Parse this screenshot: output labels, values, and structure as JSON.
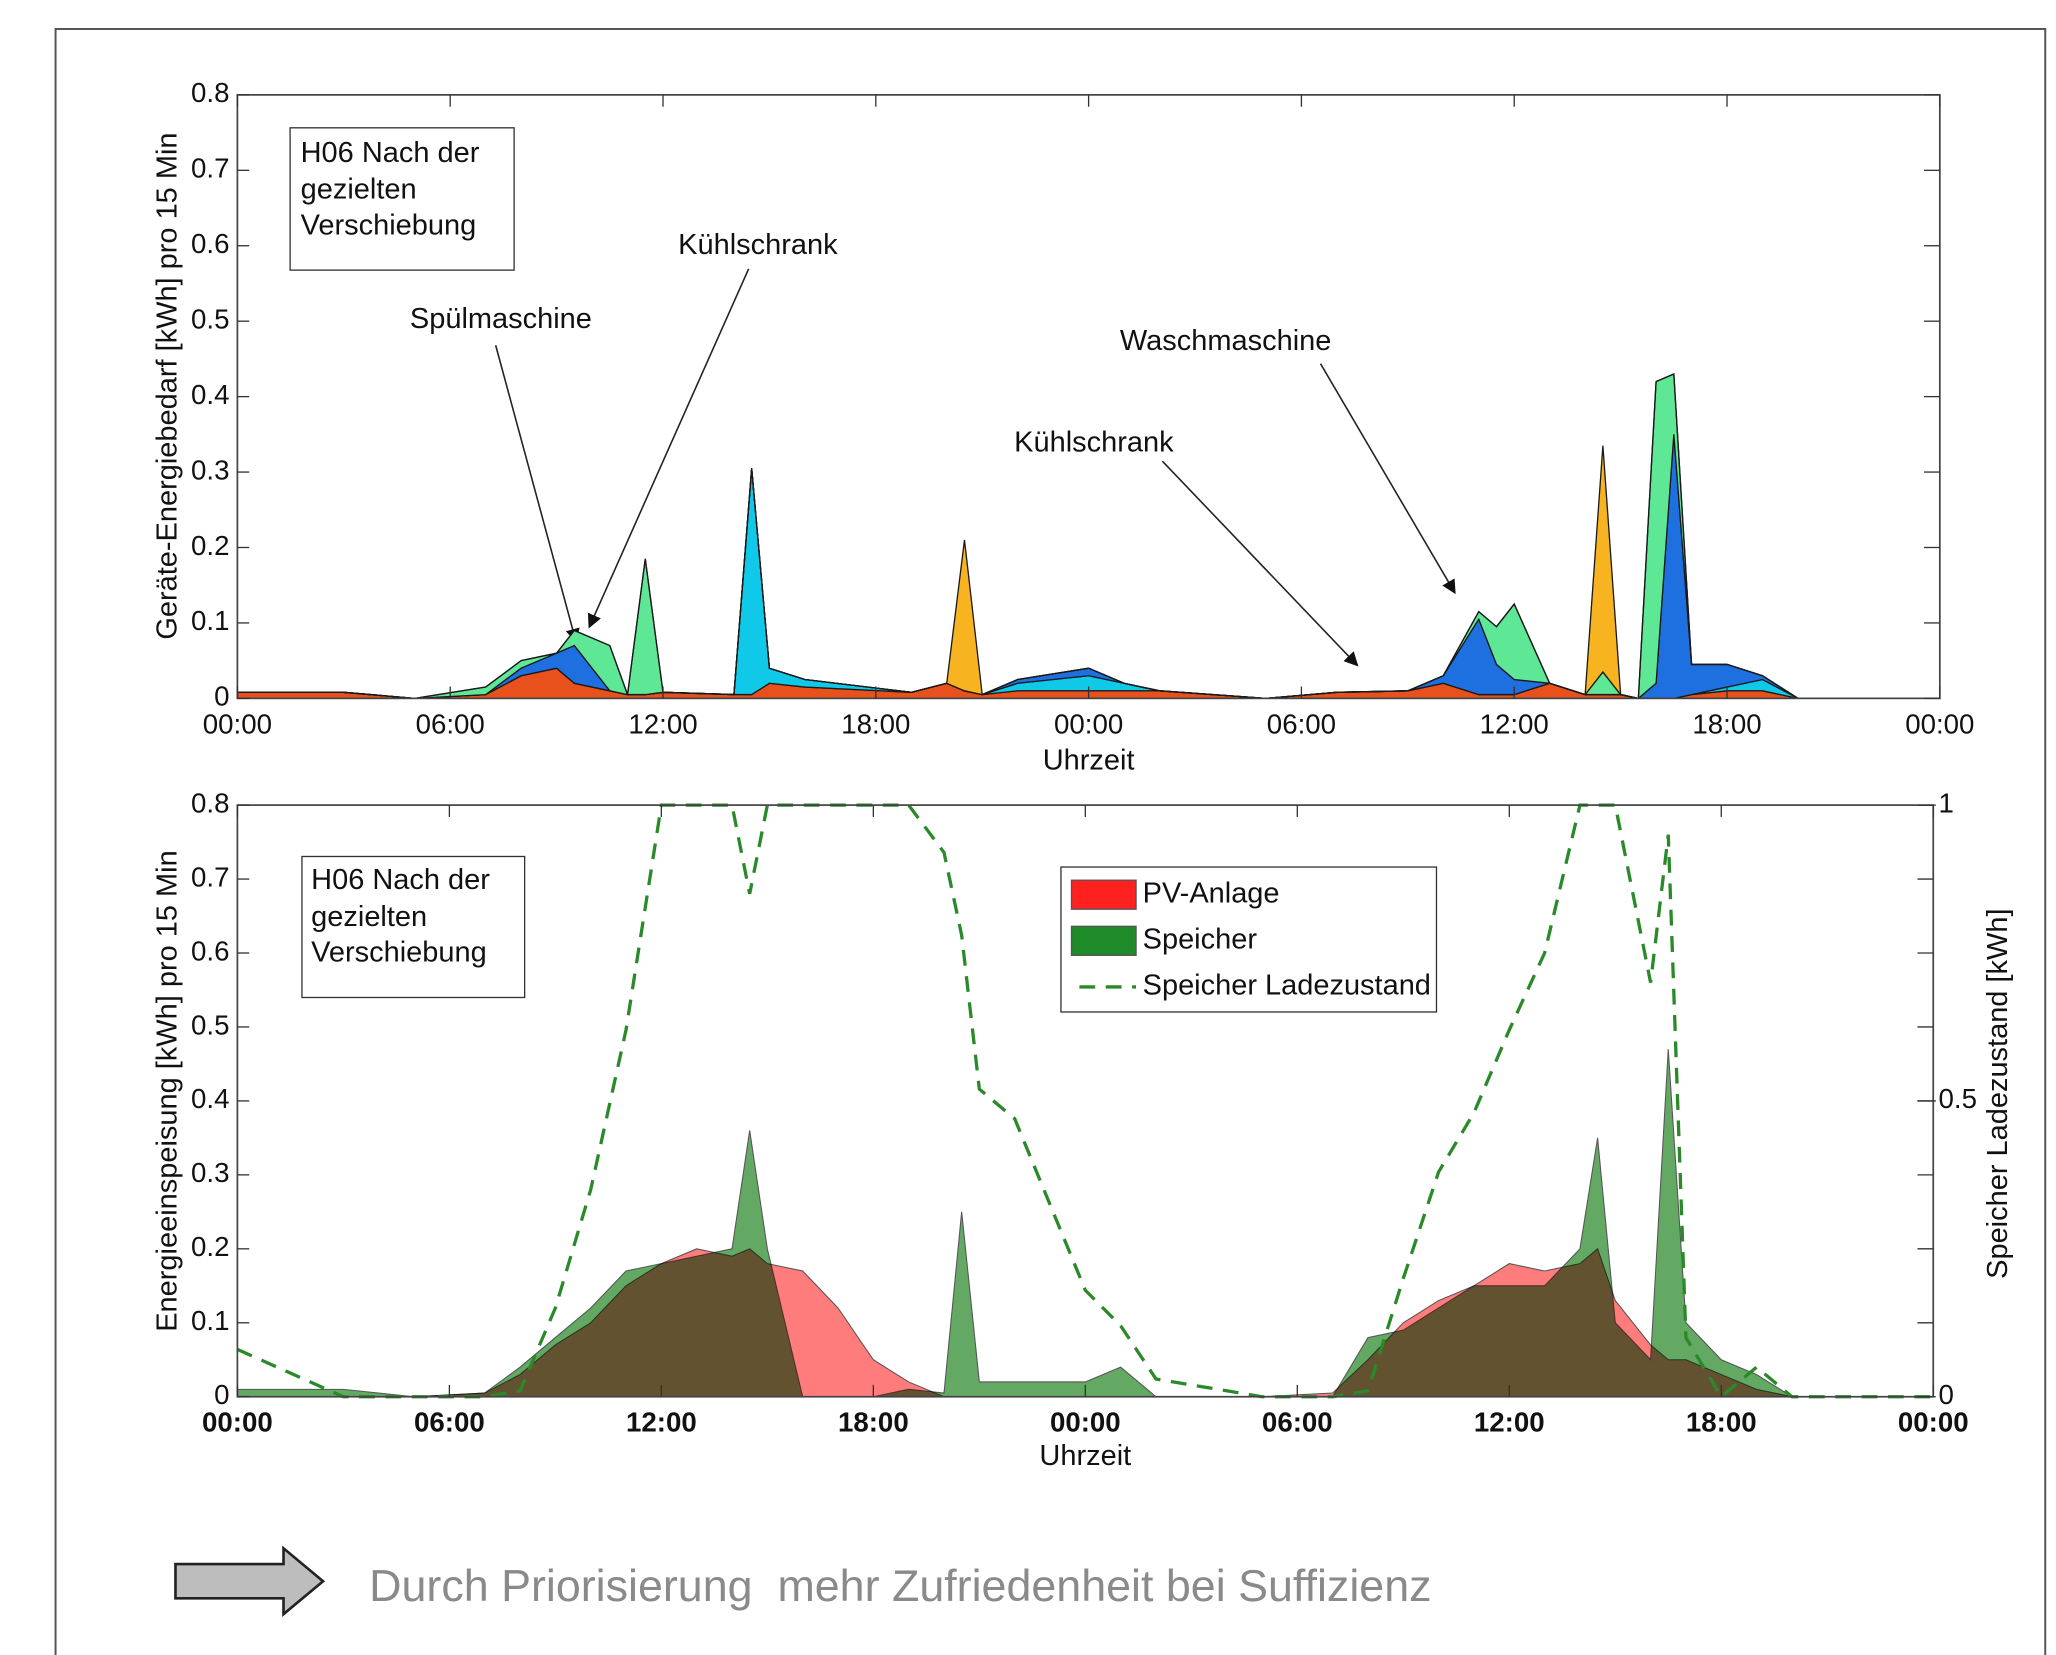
{
  "footer": "Durch Priorisierung  mehr Zufriedenheit bei Suffizienz",
  "chart_data": [
    {
      "type": "area",
      "stacked": true,
      "ylabel": "Geräte-Energiebedarf [kWh] pro 15 Min",
      "xlabel": "Uhrzeit",
      "text_box": [
        "H06 Nach der",
        "gezielten",
        "Verschiebung"
      ],
      "annotations": [
        "Spülmaschine",
        "Kühlschrank",
        "Kühlschrank",
        "Waschmaschine"
      ],
      "xlim": [
        0,
        48
      ],
      "xticks": [
        {
          "value": 0,
          "label": "00:00"
        },
        {
          "value": 6,
          "label": "06:00"
        },
        {
          "value": 12,
          "label": "12:00"
        },
        {
          "value": 18,
          "label": "18:00"
        },
        {
          "value": 24,
          "label": "00:00"
        },
        {
          "value": 30,
          "label": "06:00"
        },
        {
          "value": 36,
          "label": "12:00"
        },
        {
          "value": 42,
          "label": "18:00"
        },
        {
          "value": 48,
          "label": "00:00"
        }
      ],
      "ylim": [
        0,
        0.8
      ],
      "yticks": [
        0,
        0.1,
        0.2,
        0.3,
        0.4,
        0.5,
        0.6,
        0.7,
        0.8
      ],
      "x": [
        0,
        3,
        5,
        7,
        8,
        9,
        9.5,
        10.5,
        11,
        11.5,
        12,
        14,
        14.5,
        15,
        16,
        19,
        20,
        20.5,
        21,
        22,
        24,
        25,
        26,
        29,
        31,
        33,
        34,
        35,
        35.5,
        36,
        37,
        38,
        38.5,
        39,
        39.5,
        40,
        40.5,
        41,
        42,
        43,
        44,
        48
      ],
      "series": [
        {
          "color": "#e8501c",
          "values": [
            0.008,
            0.008,
            0,
            0.005,
            0.03,
            0.04,
            0.02,
            0.01,
            0.005,
            0.005,
            0.008,
            0.005,
            0.005,
            0.02,
            0.015,
            0.008,
            0.02,
            0.01,
            0.005,
            0.01,
            0.01,
            0.01,
            0.01,
            0,
            0.008,
            0.01,
            0.02,
            0.005,
            0.005,
            0.005,
            0.02,
            0.005,
            0.005,
            0.005,
            0,
            0,
            0,
            0.005,
            0.01,
            0.01,
            0,
            0
          ]
        },
        {
          "color": "#10c8e8",
          "values": [
            0,
            0,
            0,
            0,
            0,
            0,
            0,
            0,
            0,
            0,
            0,
            0,
            0.3,
            0.02,
            0.01,
            0,
            0,
            0,
            0,
            0.01,
            0.02,
            0.01,
            0,
            0,
            0,
            0,
            0,
            0,
            0,
            0,
            0,
            0,
            0,
            0,
            0,
            0,
            0,
            0,
            0.005,
            0.015,
            0,
            0
          ]
        },
        {
          "color": "#1e70e0",
          "values": [
            0,
            0,
            0,
            0,
            0.01,
            0.02,
            0.05,
            0,
            0,
            0,
            0,
            0,
            0,
            0,
            0,
            0,
            0,
            0,
            0,
            0.005,
            0.01,
            0,
            0,
            0,
            0,
            0,
            0.01,
            0.1,
            0.04,
            0.02,
            0,
            0,
            0,
            0,
            0,
            0.02,
            0.35,
            0.04,
            0.03,
            0.005,
            0,
            0
          ]
        },
        {
          "color": "#5ee896",
          "values": [
            0,
            0,
            0,
            0.01,
            0.01,
            0,
            0.02,
            0.06,
            0,
            0.18,
            0,
            0,
            0,
            0,
            0,
            0,
            0,
            0,
            0,
            0,
            0,
            0,
            0,
            0,
            0,
            0,
            0,
            0.01,
            0.05,
            0.1,
            0,
            0,
            0.03,
            0,
            0,
            0.4,
            0.08,
            0,
            0,
            0,
            0,
            0
          ]
        },
        {
          "color": "#f8b420",
          "values": [
            0,
            0,
            0,
            0,
            0,
            0,
            0,
            0,
            0,
            0,
            0,
            0,
            0,
            0,
            0,
            0,
            0,
            0.2,
            0,
            0,
            0,
            0,
            0,
            0,
            0,
            0,
            0,
            0,
            0,
            0,
            0,
            0,
            0.3,
            0,
            0,
            0,
            0,
            0,
            0,
            0,
            0,
            0
          ]
        }
      ]
    },
    {
      "type": "area",
      "stacked": false,
      "ylabel": "Energieeinspeisung [kWh] pro 15 Min",
      "xlabel": "Uhrzeit",
      "y2label": "Speicher Ladezustand [kWh]",
      "text_box": [
        "H06 Nach der",
        "gezielten",
        "Verschiebung"
      ],
      "xlim": [
        0,
        48
      ],
      "xticks": [
        {
          "value": 0,
          "label": "00:00"
        },
        {
          "value": 6,
          "label": "06:00"
        },
        {
          "value": 12,
          "label": "12:00"
        },
        {
          "value": 18,
          "label": "18:00"
        },
        {
          "value": 24,
          "label": "00:00"
        },
        {
          "value": 30,
          "label": "06:00"
        },
        {
          "value": 36,
          "label": "12:00"
        },
        {
          "value": 42,
          "label": "18:00"
        },
        {
          "value": 48,
          "label": "00:00"
        }
      ],
      "ylim": [
        0,
        0.8
      ],
      "yticks": [
        0,
        0.1,
        0.2,
        0.3,
        0.4,
        0.5,
        0.6,
        0.7,
        0.8
      ],
      "y2lim": [
        0,
        1
      ],
      "y2ticks": [
        0,
        0.5,
        1
      ],
      "x": [
        0,
        3,
        5,
        7,
        8,
        9,
        10,
        11,
        12,
        13,
        14,
        14.5,
        15,
        16,
        17,
        18,
        19,
        20,
        20.5,
        21,
        22,
        24,
        25,
        26,
        29,
        31,
        32,
        33,
        34,
        35,
        36,
        37,
        38,
        38.5,
        39,
        40,
        40.5,
        41,
        42,
        43,
        44,
        48
      ],
      "series": [
        {
          "name": "PV-Anlage",
          "color": "#ff7c7c",
          "values": [
            0,
            0,
            0,
            0.005,
            0.03,
            0.07,
            0.1,
            0.15,
            0.18,
            0.2,
            0.19,
            0.2,
            0.18,
            0.17,
            0.12,
            0.05,
            0.02,
            0,
            0,
            0,
            0,
            0,
            0,
            0,
            0,
            0.005,
            0.05,
            0.1,
            0.13,
            0.15,
            0.18,
            0.17,
            0.18,
            0.2,
            0.13,
            0.07,
            0.05,
            0.05,
            0.03,
            0.01,
            0,
            0
          ]
        },
        {
          "name": "Speicher",
          "color": "#63a863",
          "values": [
            0.01,
            0.01,
            0,
            0.005,
            0.04,
            0.08,
            0.12,
            0.17,
            0.18,
            0.19,
            0.2,
            0.36,
            0.2,
            0,
            0,
            0,
            0.01,
            0.005,
            0.25,
            0.02,
            0.02,
            0.02,
            0.04,
            0,
            0,
            0,
            0.08,
            0.09,
            0.12,
            0.15,
            0.15,
            0.15,
            0.2,
            0.35,
            0.1,
            0.05,
            0.47,
            0.1,
            0.05,
            0.03,
            0,
            0
          ]
        },
        {
          "name": "Speicher Ladezustand",
          "type": "line",
          "axis": "y2",
          "color": "#2a8a2a",
          "values": [
            0.08,
            0,
            0,
            0,
            0.01,
            0.15,
            0.35,
            0.62,
            1,
            1,
            1,
            0.85,
            1,
            1,
            1,
            1,
            1,
            0.92,
            0.78,
            0.52,
            0.47,
            0.18,
            0.12,
            0.03,
            0,
            0,
            0.01,
            0.2,
            0.38,
            0.48,
            0.62,
            0.75,
            1,
            1,
            1,
            0.7,
            0.95,
            0.1,
            0,
            0.05,
            0,
            0
          ]
        }
      ]
    }
  ]
}
